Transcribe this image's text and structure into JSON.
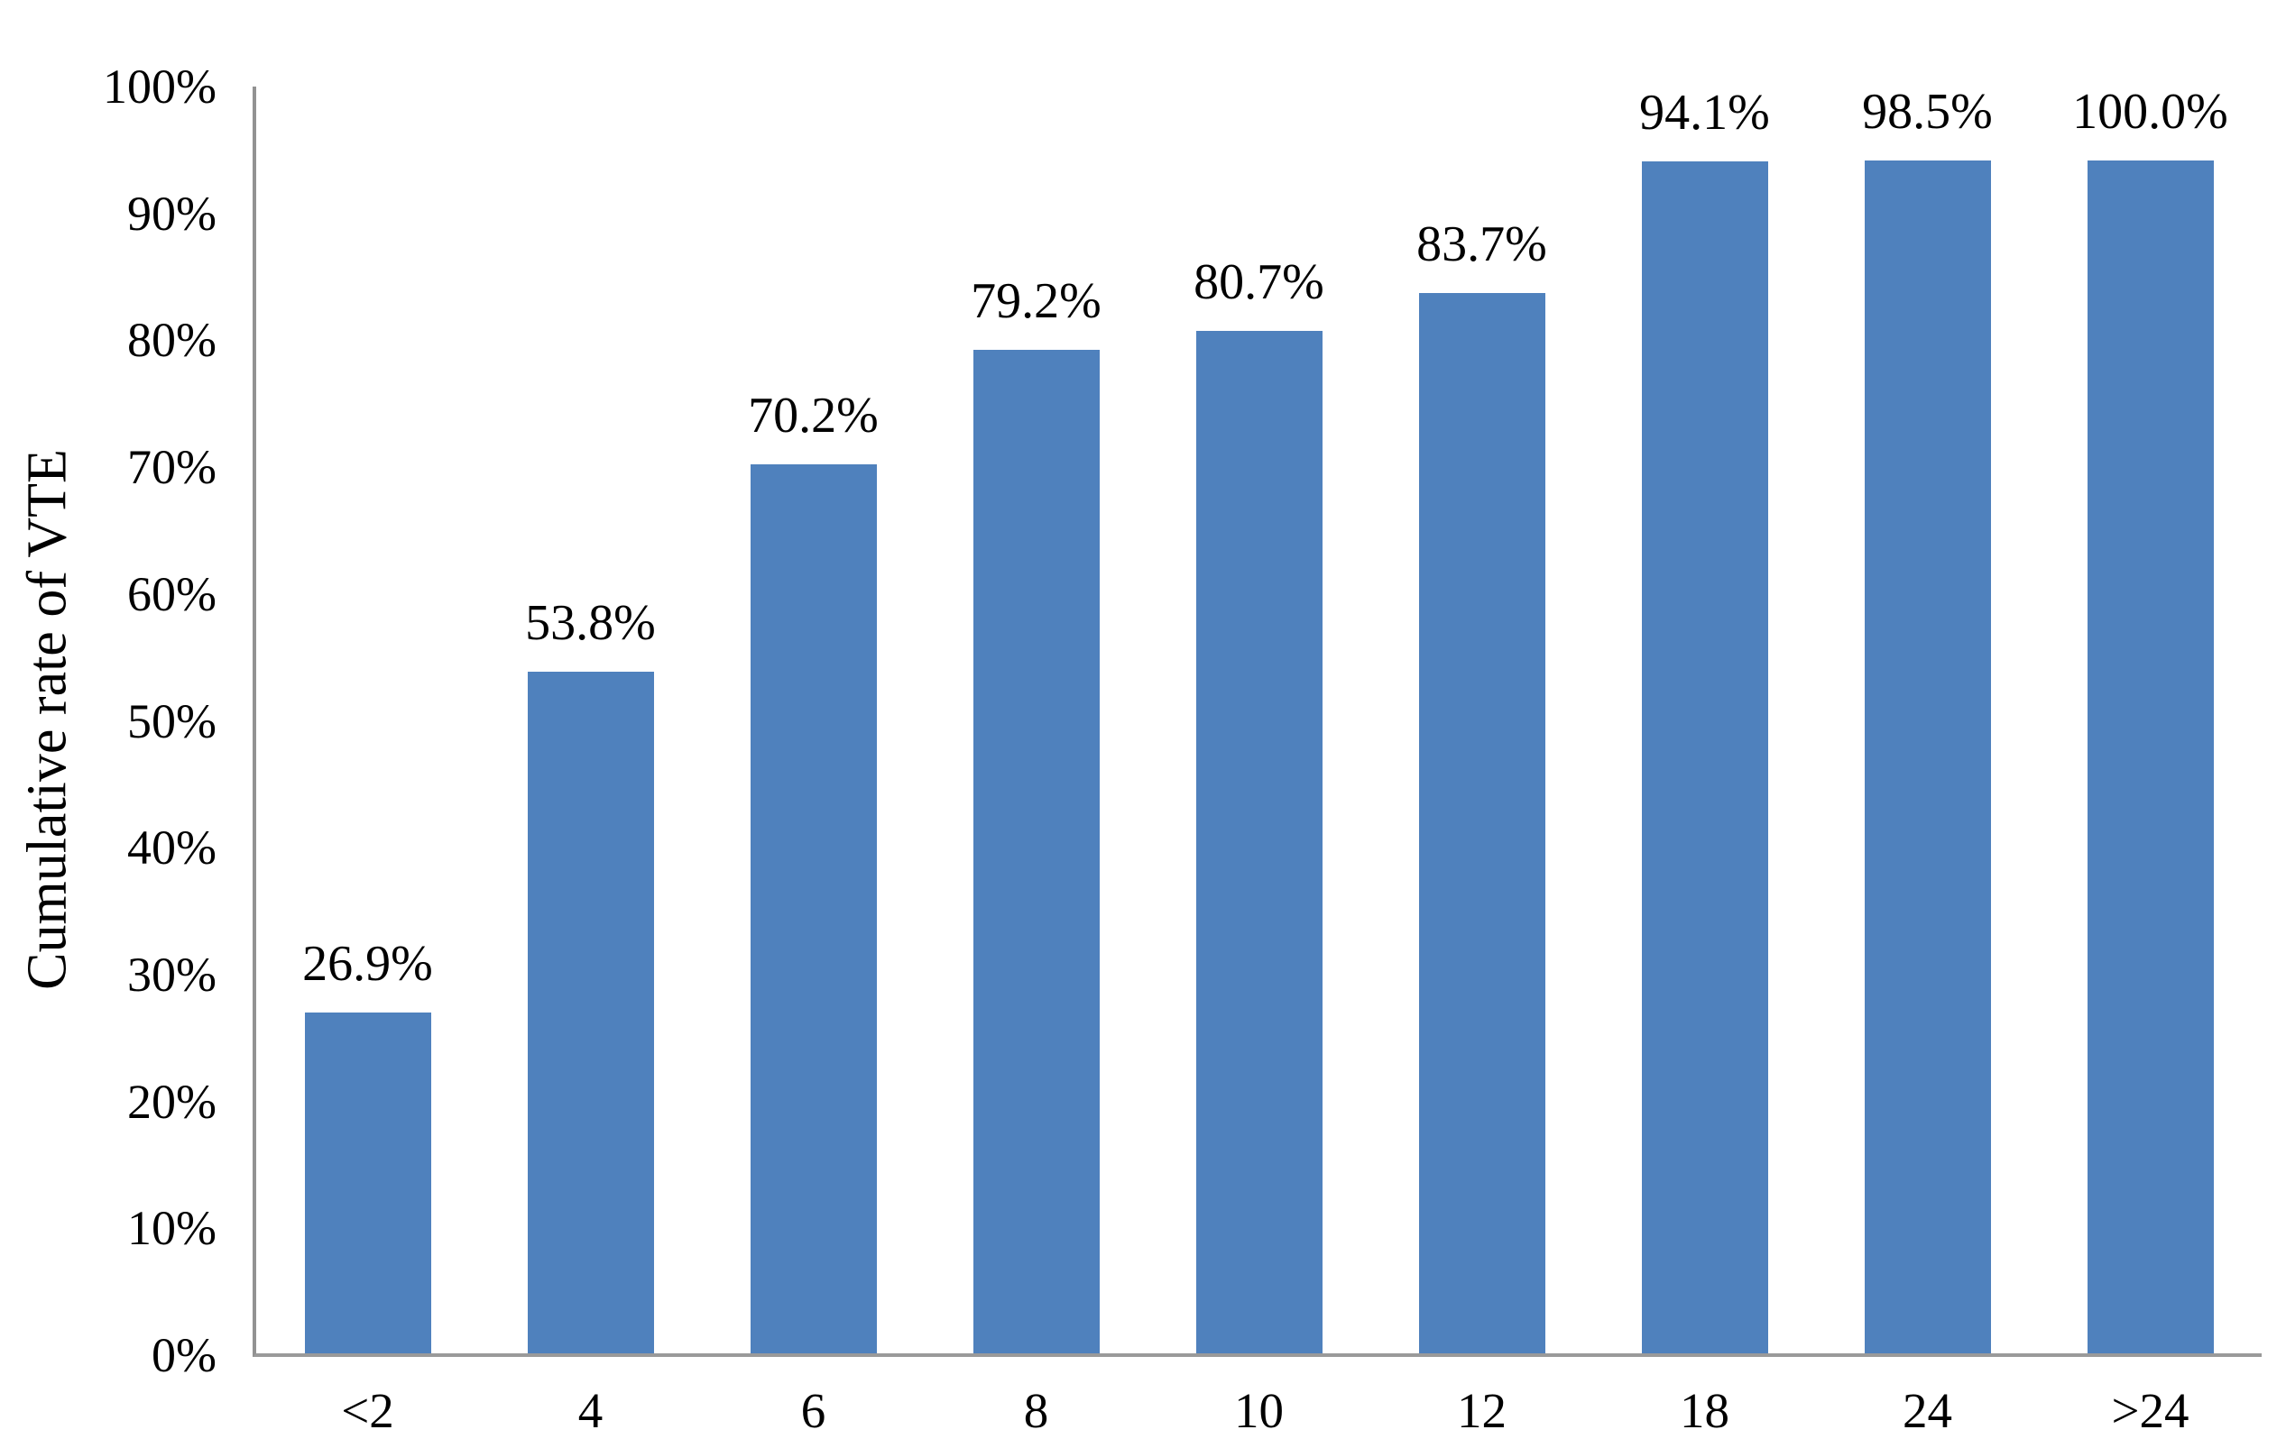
{
  "chart_data": {
    "type": "bar",
    "title": "",
    "xlabel": "",
    "ylabel": "Cumulative rate of VTE",
    "categories": [
      "<2",
      "4",
      "6",
      "8",
      "10",
      "12",
      "18",
      "24",
      ">24"
    ],
    "values": [
      26.9,
      53.8,
      70.2,
      79.2,
      80.7,
      83.7,
      94.1,
      98.5,
      100.0
    ],
    "data_labels": [
      "26.9%",
      "53.8%",
      "70.2%",
      "79.2%",
      "80.7%",
      "83.7%",
      "94.1%",
      "98.5%",
      "100.0%"
    ],
    "y_ticks": [
      {
        "value": 0,
        "label": "0%"
      },
      {
        "value": 10,
        "label": "10%"
      },
      {
        "value": 20,
        "label": "20%"
      },
      {
        "value": 30,
        "label": "30%"
      },
      {
        "value": 40,
        "label": "40%"
      },
      {
        "value": 50,
        "label": "50%"
      },
      {
        "value": 60,
        "label": "60%"
      },
      {
        "value": 70,
        "label": "70%"
      },
      {
        "value": 80,
        "label": "80%"
      },
      {
        "value": 90,
        "label": "90%"
      },
      {
        "value": 100,
        "label": "100%"
      }
    ],
    "ylim": [
      0,
      100
    ],
    "grid": false,
    "legend": false,
    "bar_color": "#4F81BD",
    "axis_color": "#9A9A9A",
    "text_color": "#000000"
  }
}
